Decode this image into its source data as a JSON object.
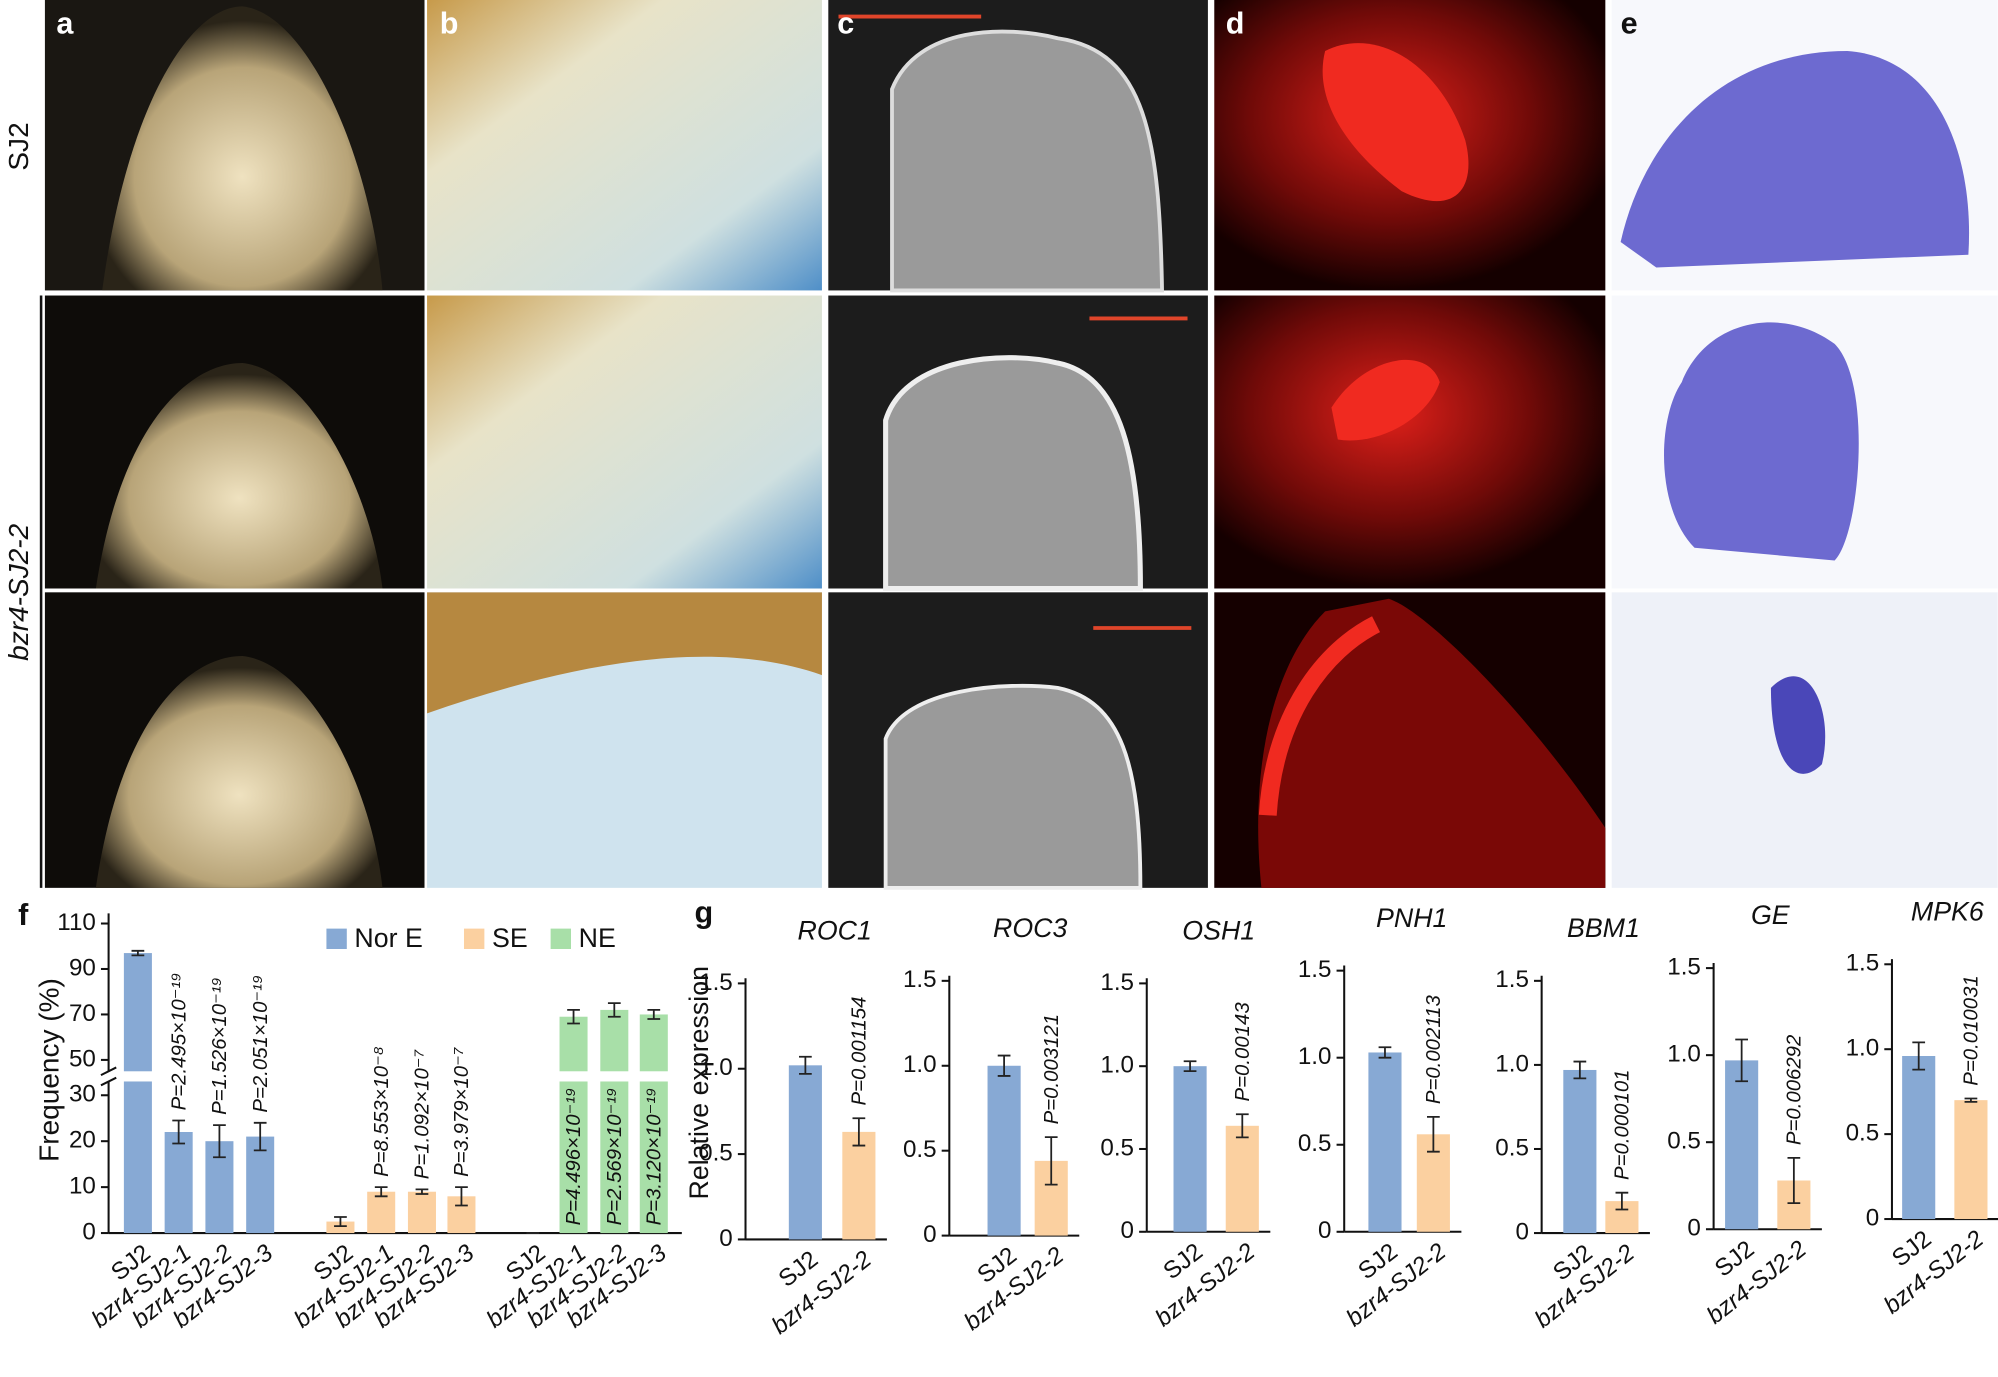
{
  "panel_labels": [
    "a",
    "b",
    "c",
    "d",
    "e"
  ],
  "row_labels": [
    "SJ2",
    "bzr4-SJ2-2"
  ],
  "chart_data": [
    {
      "type": "bar",
      "panel_label": "f",
      "y_label": "Frequency (%)",
      "categories": [
        "SJ2",
        "bzr4-SJ2-1",
        "bzr4-SJ2-2",
        "bzr4-SJ2-3"
      ],
      "series": [
        {
          "name": "Nor E",
          "color": "#87a9d4",
          "values": [
            97,
            22,
            20,
            21
          ],
          "errors": [
            1,
            2.5,
            3.5,
            3
          ],
          "p_values": [
            null,
            "P=2.495×10⁻¹⁹",
            "P=1.526×10⁻¹⁹",
            "P=2.051×10⁻¹⁹"
          ]
        },
        {
          "name": "SE",
          "color": "#fbd0a0",
          "values": [
            2.5,
            9,
            9,
            8
          ],
          "errors": [
            1,
            1,
            0.5,
            2
          ],
          "p_values": [
            null,
            "P=8.553×10⁻⁸",
            "P=1.092×10⁻⁷",
            "P=3.979×10⁻⁷"
          ]
        },
        {
          "name": "NE",
          "color": "#a8dfa8",
          "values": [
            0,
            69,
            72,
            70
          ],
          "errors": [
            0,
            3,
            3,
            2
          ],
          "p_values": [
            null,
            "P=4.496×10⁻¹⁹",
            "P=2.569×10⁻¹⁹",
            "P=3.120×10⁻¹⁹"
          ]
        }
      ],
      "ylim": [
        0,
        110
      ],
      "yticks": [
        0,
        10,
        20,
        30,
        50,
        70,
        90,
        110
      ],
      "axis_break": [
        33,
        45
      ],
      "legend": "top"
    },
    {
      "type": "bar",
      "panel_label": "g",
      "y_label": "Relative expression",
      "title": "ROC1",
      "categories": [
        "SJ2",
        "bzr4-SJ2-2"
      ],
      "values": [
        1.02,
        0.63
      ],
      "errors": [
        0.05,
        0.08
      ],
      "colors": [
        "#87a9d4",
        "#fbd0a0"
      ],
      "p_label": "P=0.001154",
      "ylim": [
        0,
        1.5
      ],
      "yticks": [
        0,
        0.5,
        {
          "value": 1,
          "label": "1.0"
        },
        1.5
      ]
    },
    {
      "type": "bar",
      "title": "ROC3",
      "categories": [
        "SJ2",
        "bzr4-SJ2-2"
      ],
      "values": [
        1.0,
        0.44
      ],
      "errors": [
        0.06,
        0.14
      ],
      "colors": [
        "#87a9d4",
        "#fbd0a0"
      ],
      "p_label": "P=0.003121",
      "ylim": [
        0,
        1.5
      ],
      "yticks": [
        0,
        0.5,
        {
          "value": 1,
          "label": "1.0"
        },
        1.5
      ]
    },
    {
      "type": "bar",
      "title": "OSH1",
      "categories": [
        "SJ2",
        "bzr4-SJ2-2"
      ],
      "values": [
        1.0,
        0.64
      ],
      "errors": [
        0.03,
        0.07
      ],
      "colors": [
        "#87a9d4",
        "#fbd0a0"
      ],
      "p_label": "P=0.00143",
      "ylim": [
        0,
        1.5
      ],
      "yticks": [
        0,
        0.5,
        {
          "value": 1,
          "label": "1.0"
        },
        1.5
      ]
    },
    {
      "type": "bar",
      "title": "PNH1",
      "categories": [
        "SJ2",
        "bzr4-SJ2-2"
      ],
      "values": [
        1.03,
        0.56
      ],
      "errors": [
        0.03,
        0.1
      ],
      "colors": [
        "#87a9d4",
        "#fbd0a0"
      ],
      "p_label": "P=0.002113",
      "ylim": [
        0,
        1.5
      ],
      "yticks": [
        0,
        0.5,
        {
          "value": 1,
          "label": "1.0"
        },
        1.5
      ]
    },
    {
      "type": "bar",
      "title": "BBM1",
      "categories": [
        "SJ2",
        "bzr4-SJ2-2"
      ],
      "values": [
        0.97,
        0.19
      ],
      "errors": [
        0.05,
        0.05
      ],
      "colors": [
        "#87a9d4",
        "#fbd0a0"
      ],
      "p_label": "P=0.000101",
      "ylim": [
        0,
        1.5
      ],
      "yticks": [
        0,
        0.5,
        {
          "value": 1,
          "label": "1.0"
        },
        1.5
      ]
    },
    {
      "type": "bar",
      "title": "GE",
      "categories": [
        "SJ2",
        "bzr4-SJ2-2"
      ],
      "values": [
        0.97,
        0.28
      ],
      "errors": [
        0.12,
        0.13
      ],
      "colors": [
        "#87a9d4",
        "#fbd0a0"
      ],
      "p_label": "P=0.006292",
      "ylim": [
        0,
        1.5
      ],
      "yticks": [
        0,
        0.5,
        {
          "value": 1,
          "label": "1.0"
        },
        1.5
      ]
    },
    {
      "type": "bar",
      "title": "MPK6",
      "categories": [
        "SJ2",
        "bzr4-SJ2-2"
      ],
      "values": [
        0.96,
        0.7
      ],
      "errors": [
        0.08,
        0.01
      ],
      "colors": [
        "#87a9d4",
        "#fbd0a0"
      ],
      "p_label": "P=0.010031",
      "ylim": [
        0,
        1.5
      ],
      "yticks": [
        0,
        0.5,
        {
          "value": 1,
          "label": "1.0"
        },
        1.5
      ]
    }
  ]
}
